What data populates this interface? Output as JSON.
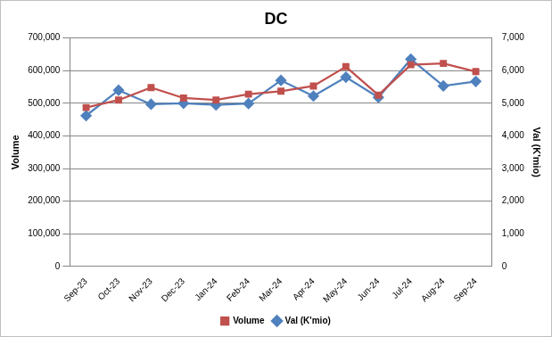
{
  "chart_data": {
    "type": "line",
    "title": "DC",
    "categories": [
      "Sep-23",
      "Oct-23",
      "Nov-23",
      "Dec-23",
      "Jan-24",
      "Feb-24",
      "Mar-24",
      "Apr-24",
      "May-24",
      "Jun-24",
      "Jul-24",
      "Aug-24",
      "Sep-24"
    ],
    "series": [
      {
        "name": "Volume",
        "color": "#c0504d",
        "marker": "square",
        "axis": "y",
        "values": [
          487000,
          510000,
          548000,
          516000,
          510000,
          528000,
          537000,
          553000,
          612000,
          525000,
          618000,
          622000,
          597000
        ]
      },
      {
        "name": "Val (K'mio)",
        "color": "#4f81bd",
        "marker": "diamond",
        "axis": "y2",
        "values": [
          4620,
          5400,
          4970,
          5000,
          4950,
          4990,
          5700,
          5220,
          5800,
          5180,
          6350,
          5530,
          5670
        ]
      }
    ],
    "y_label": "Volume",
    "y2_label": "Val (K'mio)",
    "ylim": [
      0,
      700000
    ],
    "yticks": [
      0,
      {
        "value": 100000,
        "label": "100,000"
      },
      {
        "value": 200000,
        "label": "200,000"
      },
      {
        "value": 300000,
        "label": "300,000"
      },
      {
        "value": 400000,
        "label": "400,000"
      },
      {
        "value": 500000,
        "label": "500,000"
      },
      {
        "value": 600000,
        "label": "600,000"
      },
      {
        "value": 700000,
        "label": "700,000"
      }
    ],
    "y2lim": [
      0,
      7000
    ],
    "y2ticks": [
      0,
      {
        "value": 1000,
        "label": "1,000"
      },
      {
        "value": 2000,
        "label": "2,000"
      },
      {
        "value": 3000,
        "label": "3,000"
      },
      {
        "value": 4000,
        "label": "4,000"
      },
      {
        "value": 5000,
        "label": "5,000"
      },
      {
        "value": 6000,
        "label": "6,000"
      },
      {
        "value": 7000,
        "label": "7,000"
      }
    ],
    "grid": true,
    "legend": "bottom"
  }
}
